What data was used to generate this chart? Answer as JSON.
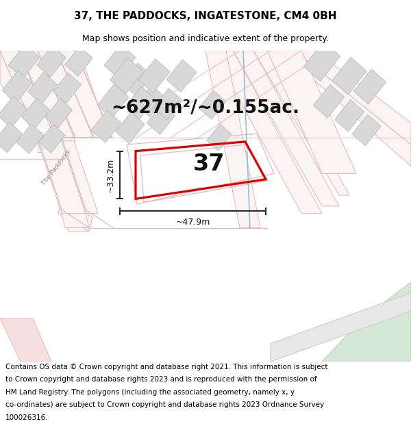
{
  "title": "37, THE PADDOCKS, INGATESTONE, CM4 0BH",
  "subtitle": "Map shows position and indicative extent of the property.",
  "area_text": "~627m²/~0.155ac.",
  "property_number": "37",
  "dim_width": "~47.9m",
  "dim_height": "~33.2m",
  "footer": "Contains OS data © Crown copyright and database right 2021. This information is subject to Crown copyright and database rights 2023 and is reproduced with the permission of HM Land Registry. The polygons (including the associated geometry, namely x, y co-ordinates) are subject to Crown copyright and database rights 2023 Ordnance Survey 100026316.",
  "map_bg": "#f7f5f5",
  "road_line_color": "#e8b8b8",
  "road_fill_color": "#f5e0e0",
  "building_color": "#d8d8d8",
  "building_outline": "#bbbbbb",
  "green_color": "#d5e8d5",
  "green_outline": "#b8d4b8",
  "blue_line_color": "#90c0d8",
  "plot_color": "#dd0000",
  "dim_color": "#222222",
  "title_fontsize": 11,
  "subtitle_fontsize": 9,
  "footer_fontsize": 7.5,
  "area_fontsize": 19,
  "number_fontsize": 24,
  "dim_fontsize": 9
}
